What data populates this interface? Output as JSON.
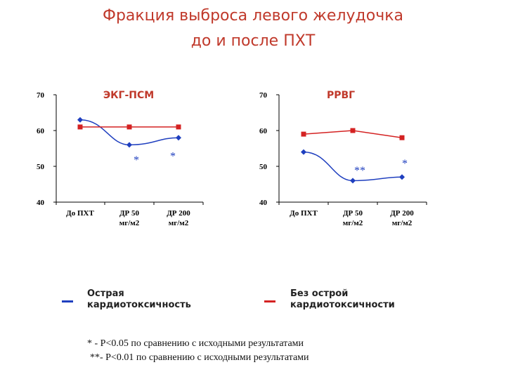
{
  "title": {
    "line1": "Фракция выброса левого желудочка",
    "line2": "до и после ПХТ"
  },
  "colors": {
    "blue": "#1f3fbf",
    "red": "#d42222",
    "title": "#c0392b"
  },
  "chart_data": [
    {
      "type": "line",
      "title": "ЭКГ-ПСМ",
      "categories": [
        "До ПХТ",
        "ДР 50 мг/м2",
        "ДР 200 мг/м2"
      ],
      "category_lines": [
        [
          "До ПХТ"
        ],
        [
          "ДР 50",
          "мг/м2"
        ],
        [
          "ДР 200",
          "мг/м2"
        ]
      ],
      "ylim": [
        40,
        70
      ],
      "yticks": [
        40,
        50,
        60,
        70
      ],
      "series": [
        {
          "name": "Острая кардиотоксичность",
          "color": "#1f3fbf",
          "marker": "diamond",
          "values": [
            63,
            56,
            58
          ]
        },
        {
          "name": "Без острой кардиотоксичности",
          "color": "#d42222",
          "marker": "square",
          "values": [
            61,
            61,
            61
          ]
        }
      ],
      "annotations": [
        {
          "category": 1,
          "y": 52,
          "text": "*"
        },
        {
          "category": 2,
          "y": 53,
          "text": "*"
        }
      ]
    },
    {
      "type": "line",
      "title": "РРВГ",
      "categories": [
        "До ПХТ",
        "ДР 50 мг/м2",
        "ДР 200 мг/м2"
      ],
      "category_lines": [
        [
          "До ПХТ"
        ],
        [
          "ДР 50",
          "мг/м2"
        ],
        [
          "ДР 200",
          "мг/м2"
        ]
      ],
      "ylim": [
        40,
        70
      ],
      "yticks": [
        40,
        50,
        60,
        70
      ],
      "series": [
        {
          "name": "Острая кардиотоксичность",
          "color": "#1f3fbf",
          "marker": "diamond",
          "values": [
            54,
            46,
            47
          ]
        },
        {
          "name": "Без острой кардиотоксичности",
          "color": "#d42222",
          "marker": "square",
          "values": [
            59,
            60,
            58
          ]
        }
      ],
      "annotations": [
        {
          "category": 1,
          "y": 49,
          "text": "**"
        },
        {
          "category": 2,
          "y": 51,
          "text": "*"
        }
      ]
    }
  ],
  "legend": {
    "blue": {
      "line1": "Острая",
      "line2": "кардиотоксичность"
    },
    "red": {
      "line1": "Без острой",
      "line2": "кардиотоксичности"
    }
  },
  "footnotes": {
    "line1": "* - P<0.05 по сравнению с исходными результатами",
    "line2": "**- P<0.01 по сравнению с исходными результатами"
  }
}
